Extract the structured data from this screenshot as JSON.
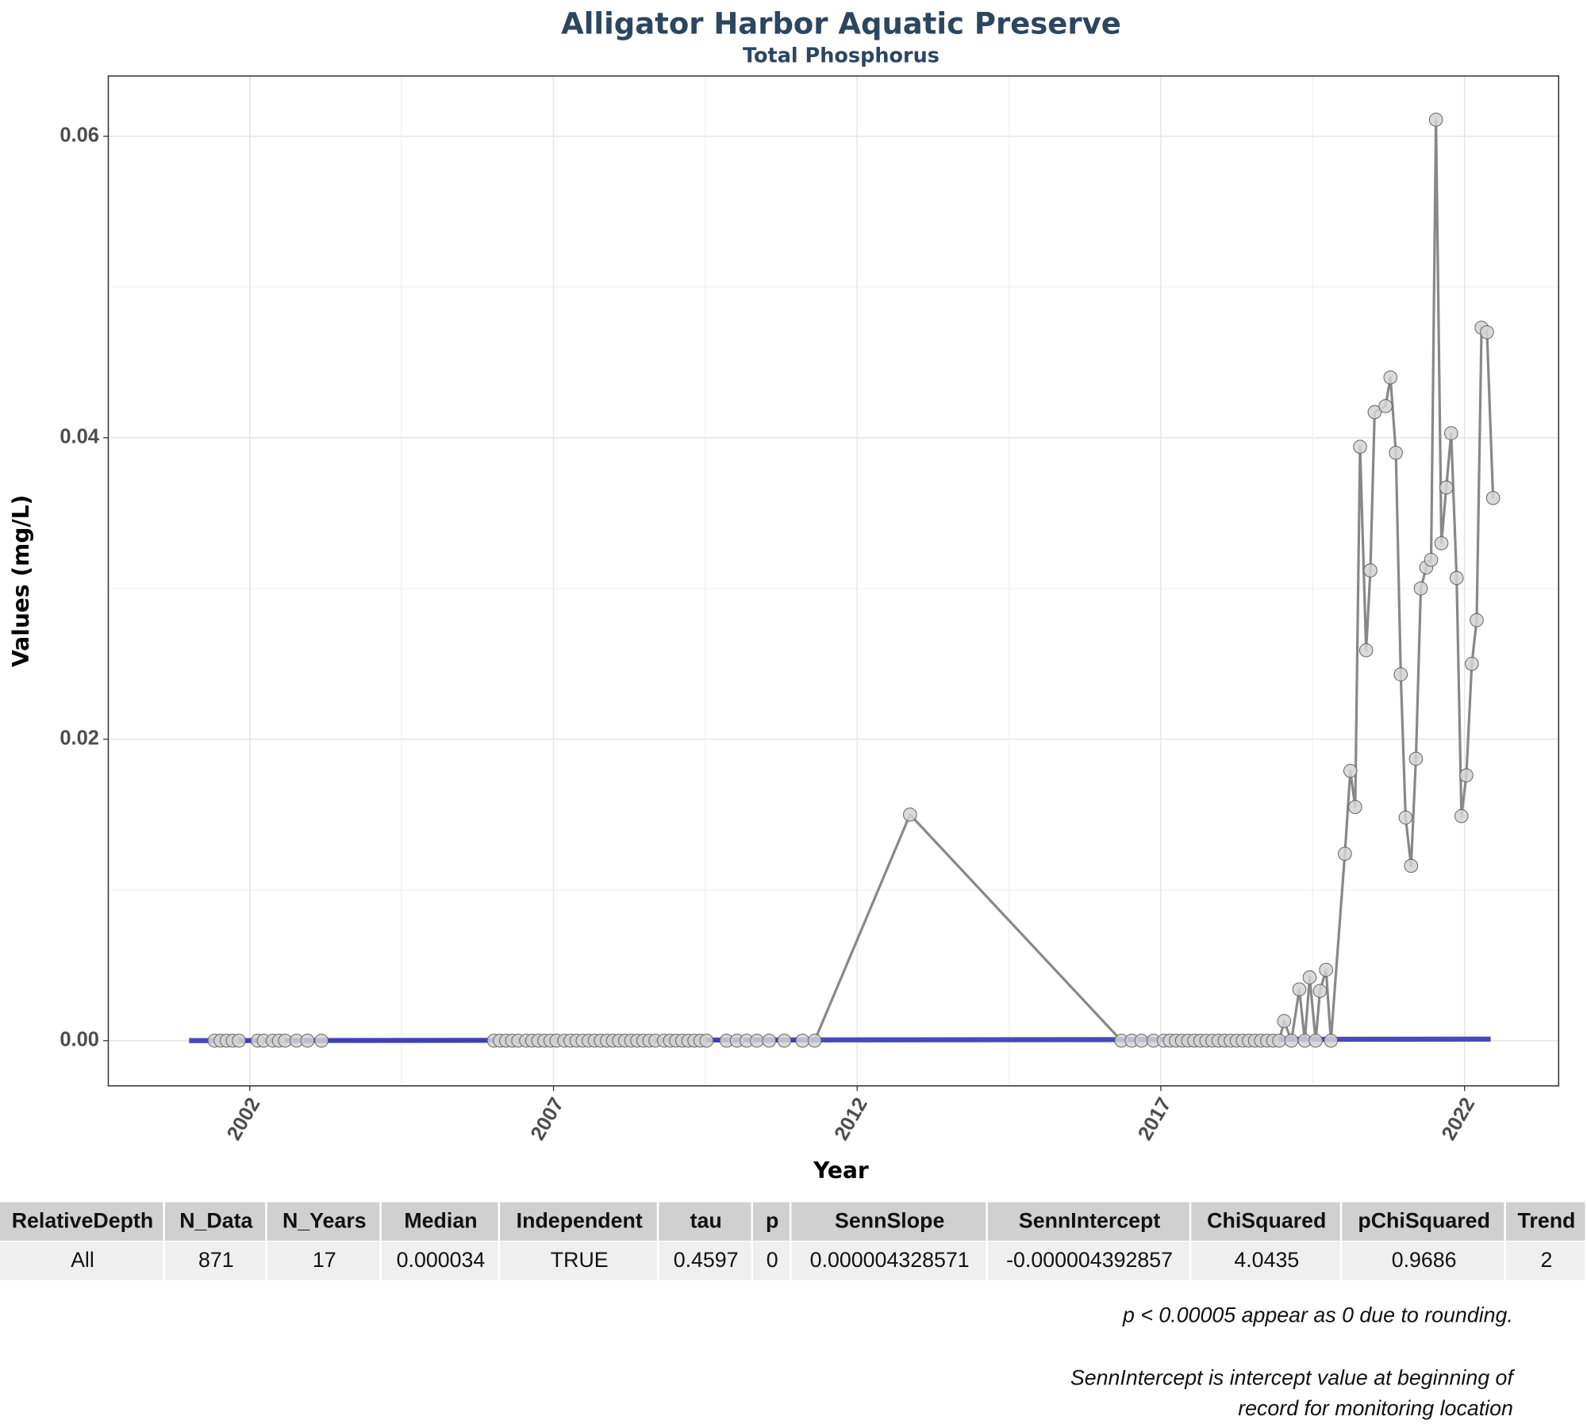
{
  "chart_data": {
    "type": "line",
    "title": "Alligator Harbor Aquatic Preserve",
    "subtitle": "Total Phosphorus",
    "x_label": "Year",
    "y_label": "Values (mg/L)",
    "xlim": [
      1999.67,
      2023.55
    ],
    "ylim": [
      -0.003,
      0.064
    ],
    "xticks": [
      2002,
      2007,
      2012,
      2017,
      2022
    ],
    "yticks": [
      {
        "value": 0,
        "label": "0.00"
      },
      0.02,
      0.04,
      0.06
    ],
    "grid": true,
    "color": "#888888",
    "marker_fill": "#d3d3d3",
    "marker_edge": "#666666",
    "x": [
      2001.42,
      2001.52,
      2001.62,
      2001.72,
      2001.82,
      2002.13,
      2002.23,
      2002.38,
      2002.48,
      2002.58,
      2002.77,
      2002.95,
      2003.18,
      2006.02,
      2006.12,
      2006.22,
      2006.32,
      2006.42,
      2006.55,
      2006.65,
      2006.75,
      2006.85,
      2006.95,
      2007.05,
      2007.18,
      2007.28,
      2007.38,
      2007.48,
      2007.58,
      2007.68,
      2007.78,
      2007.88,
      2007.98,
      2008.08,
      2008.18,
      2008.28,
      2008.38,
      2008.48,
      2008.58,
      2008.68,
      2008.82,
      2008.92,
      2009.02,
      2009.12,
      2009.22,
      2009.32,
      2009.42,
      2009.52,
      2009.85,
      2010.02,
      2010.18,
      2010.35,
      2010.55,
      2010.8,
      2011.1,
      2011.3,
      2012.87,
      2016.35,
      2016.52,
      2016.68,
      2016.88,
      2017.05,
      2017.15,
      2017.25,
      2017.35,
      2017.45,
      2017.55,
      2017.65,
      2017.75,
      2017.85,
      2017.95,
      2018.05,
      2018.15,
      2018.25,
      2018.35,
      2018.45,
      2018.55,
      2018.65,
      2018.75,
      2018.85,
      2018.95,
      2019.03,
      2019.15,
      2019.28,
      2019.37,
      2019.45,
      2019.55,
      2019.62,
      2019.72,
      2019.8,
      2020.03,
      2020.12,
      2020.2,
      2020.28,
      2020.38,
      2020.45,
      2020.52,
      2020.7,
      2020.78,
      2020.87,
      2020.95,
      2021.03,
      2021.12,
      2021.2,
      2021.28,
      2021.37,
      2021.45,
      2021.53,
      2021.62,
      2021.7,
      2021.78,
      2021.87,
      2021.95,
      2022.03,
      2022.12,
      2022.2,
      2022.28,
      2022.37,
      2022.47
    ],
    "values": [
      0,
      0,
      0,
      0,
      0,
      0,
      0,
      0,
      0,
      0,
      0,
      0,
      0,
      0,
      0,
      0,
      0,
      0,
      0,
      0,
      0,
      0,
      0,
      0,
      0,
      0,
      0,
      0,
      0,
      0,
      0,
      0,
      0,
      0,
      0,
      0,
      0,
      0,
      0,
      0,
      0,
      0,
      0,
      0,
      0,
      0,
      0,
      0,
      0,
      0,
      0,
      0,
      0,
      0,
      0,
      0,
      0.015,
      0,
      0,
      0,
      0,
      0,
      0,
      0,
      0,
      0,
      0,
      0,
      0,
      0,
      0,
      0,
      0,
      0,
      0,
      0,
      0,
      0,
      0,
      0,
      0,
      0.0013,
      0,
      0.0034,
      0,
      0.0042,
      0,
      0.0033,
      0.0047,
      0,
      0.0124,
      0.0179,
      0.0155,
      0.0394,
      0.0259,
      0.0312,
      0.0417,
      0.0421,
      0.044,
      0.039,
      0.0243,
      0.0148,
      0.0116,
      0.0187,
      0.03,
      0.0314,
      0.0319,
      0.0611,
      0.033,
      0.0367,
      0.0403,
      0.0307,
      0.0149,
      0.0176,
      0.025,
      0.0279,
      0.0473,
      0.047,
      0.036
    ],
    "trend": {
      "x": [
        2001.0,
        2022.43
      ],
      "values": [
        0,
        0.0001
      ],
      "color": "#3535b5"
    }
  },
  "table": {
    "columns": [
      "RelativeDepth",
      "N_Data",
      "N_Years",
      "Median",
      "Independent",
      "tau",
      "p",
      "SennSlope",
      "SennIntercept",
      "ChiSquared",
      "pChiSquared",
      "Trend"
    ],
    "rows": [
      [
        "All",
        "871",
        "17",
        "0.000034",
        "TRUE",
        "0.4597",
        "0",
        "0.000004328571",
        "-0.000004392857",
        "4.0435",
        "0.9686",
        "2"
      ]
    ]
  },
  "notes": [
    "p < 0.00005 appear as 0 due to rounding.",
    "SennIntercept is intercept value at beginning of",
    "record for monitoring location"
  ]
}
